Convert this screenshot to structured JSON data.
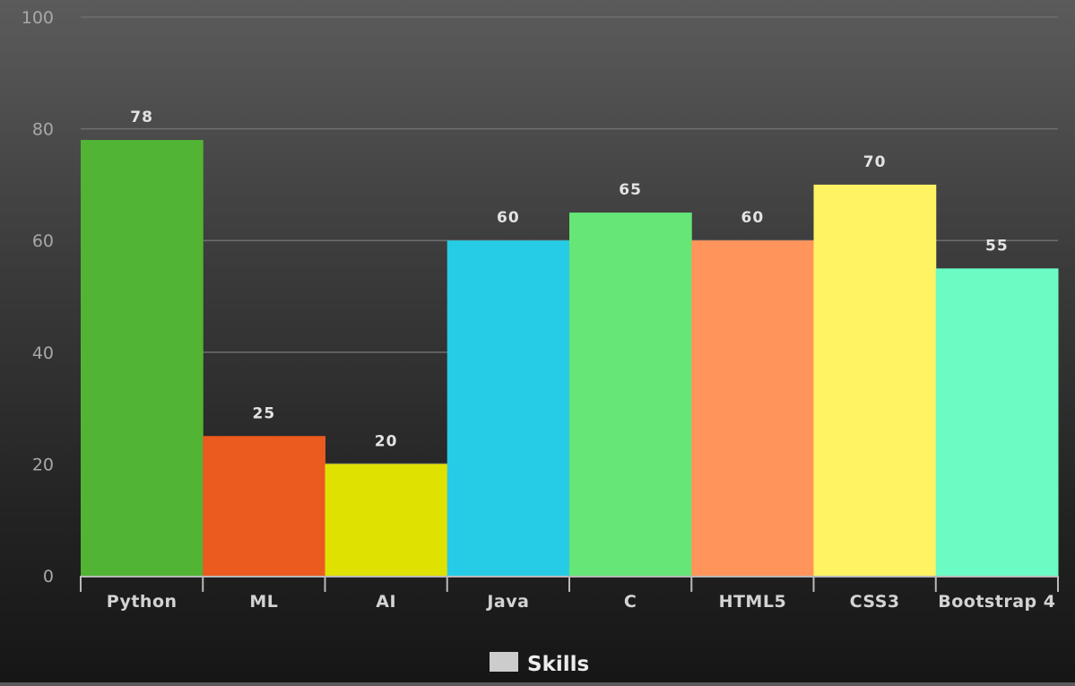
{
  "chart_data": {
    "type": "bar",
    "title": "",
    "xlabel": "",
    "ylabel": "",
    "ylim": [
      0,
      100
    ],
    "yticks": [
      "0",
      "20",
      "40",
      "60",
      "80",
      "100"
    ],
    "categories": [
      "Python",
      "ML",
      "AI",
      "Java",
      "C",
      "HTML5",
      "CSS3",
      "Bootstrap 4"
    ],
    "series": [
      {
        "name": "Skills",
        "values": [
          78,
          25,
          20,
          60,
          65,
          60,
          70,
          55
        ],
        "colors": [
          "#52b434",
          "#eb5a1e",
          "#dfe100",
          "#26cce5",
          "#65e676",
          "#ff955a",
          "#fff263",
          "#6bfcc4"
        ]
      }
    ],
    "data_labels": [
      "78",
      "25",
      "20",
      "60",
      "65",
      "60",
      "70",
      "55"
    ],
    "legend": {
      "position": "bottom",
      "label": "Skills",
      "swatch_color": "#cccccc"
    },
    "grid": true,
    "colors": {
      "grid": "#6e6e6e",
      "axis": "#b9b9b9",
      "tick_label": "#a8a8a8",
      "category_label": "#d3d3d3",
      "data_label": "#e3e3e3",
      "legend_text": "#ececec"
    }
  }
}
